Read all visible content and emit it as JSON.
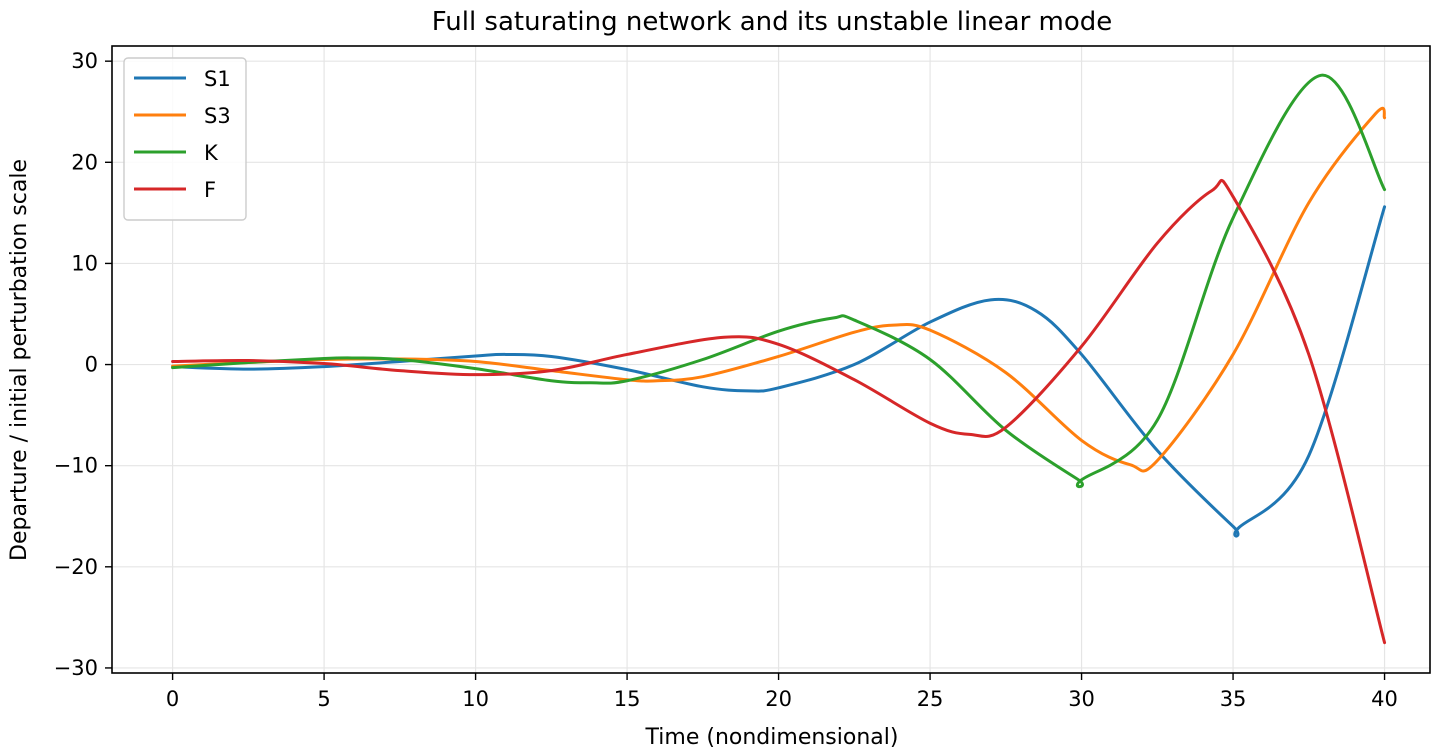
{
  "chart_data": {
    "type": "line",
    "title": "Full saturating network and its unstable linear mode",
    "xlabel": "Time (nondimensional)",
    "ylabel": "Departure / initial perturbation scale",
    "xlim": [
      -2,
      41.5
    ],
    "ylim": [
      -30.5,
      31.5
    ],
    "xticks": [
      0,
      5,
      10,
      15,
      20,
      25,
      30,
      35,
      40
    ],
    "yticks": [
      -30,
      -20,
      -10,
      0,
      10,
      20,
      30
    ],
    "ytick_labels": [
      "−30",
      "−20",
      "−10",
      "0",
      "10",
      "20",
      "30"
    ],
    "grid": true,
    "legend_position": "top-left",
    "series": [
      {
        "name": "S1",
        "color": "#1f77b4",
        "x": [
          0,
          2.5,
          5,
          7.5,
          10,
          11,
          12.5,
          15,
          17.5,
          19,
          20,
          22.5,
          25,
          27,
          28.5,
          30,
          32.5,
          35,
          35.2,
          37.5,
          40
        ],
        "y": [
          -0.2,
          -0.45,
          -0.2,
          0.3,
          0.85,
          1.0,
          0.8,
          -0.5,
          -2.2,
          -2.6,
          -2.3,
          0.0,
          4.2,
          6.4,
          5.3,
          1.0,
          -8.5,
          -16.0,
          -16.1,
          -9.0,
          15.6
        ]
      },
      {
        "name": "S3",
        "color": "#ff7f0e",
        "x": [
          0,
          2.5,
          5,
          7.5,
          10,
          12.5,
          15,
          16,
          17.5,
          20,
          22.5,
          23.8,
          25,
          27.5,
          30,
          31.6,
          32.5,
          35,
          37.5,
          39.7,
          40
        ],
        "y": [
          -0.15,
          0.2,
          0.5,
          0.55,
          0.3,
          -0.6,
          -1.5,
          -1.6,
          -1.2,
          0.8,
          3.2,
          3.9,
          3.4,
          -0.8,
          -7.5,
          -9.9,
          -9.5,
          1.0,
          16.0,
          24.8,
          24.4
        ]
      },
      {
        "name": "K",
        "color": "#2ca02c",
        "x": [
          0,
          2.5,
          5,
          6,
          7.5,
          10,
          12.5,
          13.8,
          15,
          17.5,
          20,
          21.8,
          22.5,
          25,
          27.5,
          29.9,
          30,
          32.5,
          35,
          37.9,
          40
        ],
        "y": [
          -0.3,
          0.2,
          0.6,
          0.65,
          0.5,
          -0.4,
          -1.6,
          -1.8,
          -1.6,
          0.5,
          3.3,
          4.6,
          4.4,
          0.5,
          -6.5,
          -11.4,
          -11.4,
          -5.5,
          14.5,
          28.6,
          17.3
        ]
      },
      {
        "name": "F",
        "color": "#d62728",
        "x": [
          0,
          2.5,
          5,
          7.5,
          10,
          12.5,
          15,
          18.2,
          20,
          22.5,
          25,
          26.3,
          27.5,
          30,
          32.5,
          34.3,
          35,
          37.5,
          40
        ],
        "y": [
          0.3,
          0.4,
          0.1,
          -0.6,
          -1.0,
          -0.6,
          1.0,
          2.7,
          2.0,
          -1.5,
          -5.8,
          -6.9,
          -6.2,
          1.8,
          12.0,
          17.2,
          16.6,
          1.0,
          -27.5
        ]
      }
    ]
  }
}
